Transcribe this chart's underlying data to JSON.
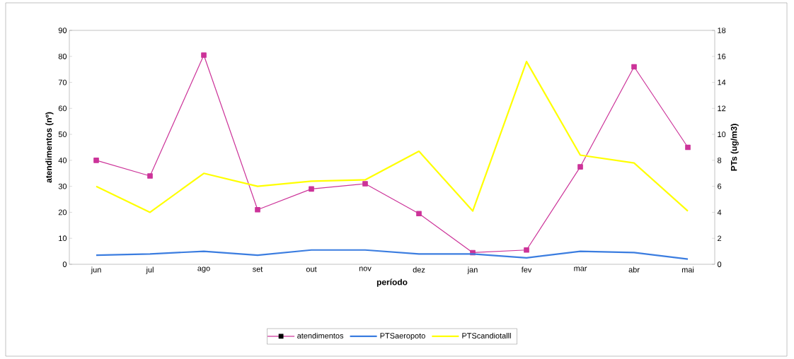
{
  "chart_data": {
    "type": "line",
    "xlabel": "período",
    "ylabel": "atendimentos (nº)",
    "y2label": "PTs (ug/m3)",
    "categories": [
      "jun",
      "jul",
      "ago",
      "set",
      "out",
      "nov",
      "dez",
      "jan",
      "fev",
      "mar",
      "abr",
      "mai"
    ],
    "series": [
      {
        "name": "atendimentos",
        "color": "#cc3399",
        "marker": "square",
        "values": [
          40,
          34,
          80.5,
          21,
          29,
          31,
          19.5,
          4.5,
          5.5,
          37.5,
          76,
          45
        ]
      },
      {
        "name": "PTSaeropoto",
        "color": "#3b7de0",
        "axis": "y2",
        "marker": "none",
        "values": [
          0.7,
          0.8,
          1.0,
          0.7,
          1.1,
          1.1,
          0.8,
          0.8,
          0.5,
          1.0,
          0.9,
          0.4
        ]
      },
      {
        "name": "PTScandiotalll",
        "color": "#ffff00",
        "axis": "y2",
        "marker": "none",
        "values": [
          6,
          4,
          7,
          6,
          6.4,
          6.5,
          8.7,
          4.1,
          15.6,
          8.4,
          7.8,
          4.1
        ]
      }
    ],
    "ylim": [
      0,
      90
    ],
    "yticks": [
      0,
      10,
      20,
      30,
      40,
      50,
      60,
      70,
      80,
      90
    ],
    "y2lim": [
      0,
      18
    ],
    "y2ticks": [
      0,
      2,
      4,
      6,
      8,
      10,
      12,
      14,
      16,
      18
    ],
    "legend": "bottom",
    "grid": false
  }
}
